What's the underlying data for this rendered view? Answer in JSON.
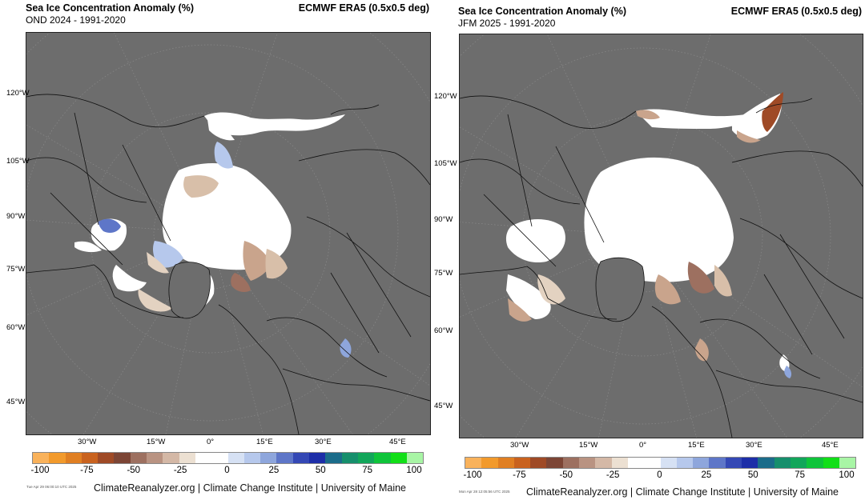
{
  "panels": [
    {
      "title": "Sea Ice Concentration Anomaly (%)",
      "subtitle": "OND 2024 - 1991-2020",
      "source": "ECMWF ERA5 (0.5x0.5 deg)",
      "lat_labels": [
        "120°W",
        "105°W",
        "90°W",
        "75°W",
        "60°W",
        "45°W"
      ],
      "lon_labels": [
        "30°W",
        "15°W",
        "0°",
        "15°E",
        "30°E",
        "45°E"
      ],
      "timestamp": "Tue Apr 29 06:00:10 UTC 2025",
      "credit": "ClimateReanalyzer.org | Climate Change Institute | University of Maine"
    },
    {
      "title": "Sea Ice Concentration Anomaly (%)",
      "subtitle": "JFM 2025 - 1991-2020",
      "source": "ECMWF ERA5 (0.5x0.5 deg)",
      "lat_labels": [
        "120°W",
        "105°W",
        "90°W",
        "75°W",
        "60°W",
        "45°W"
      ],
      "lon_labels": [
        "30°W",
        "15°W",
        "0°",
        "15°E",
        "30°E",
        "45°E"
      ],
      "timestamp": "Mon Apr 28 12:05:56 UTC 2025",
      "credit": "ClimateReanalyzer.org | Climate Change Institute | University of Maine"
    }
  ],
  "colorbar": {
    "ticks": [
      "-100",
      "-75",
      "-50",
      "-25",
      "0",
      "25",
      "50",
      "75",
      "100"
    ],
    "colors": [
      "#f9b25b",
      "#f29a2c",
      "#e07f22",
      "#c9621e",
      "#9f4a26",
      "#7c4535",
      "#9d7060",
      "#b99382",
      "#d4b8a6",
      "#ece0d2",
      "#ffffff",
      "#ffffff",
      "#d6e1f4",
      "#b6c8ec",
      "#8ea6dc",
      "#5e76c8",
      "#3448b5",
      "#1d2ea8",
      "#1b6c8a",
      "#168f6c",
      "#12a65a",
      "#0fc43a",
      "#12df18",
      "#a8f5a5"
    ]
  },
  "map_colors": {
    "land": "#6d6d6d",
    "ice_normal": "#ffffff",
    "loss": "#c9a48c",
    "gain": "#8ea6dc"
  }
}
